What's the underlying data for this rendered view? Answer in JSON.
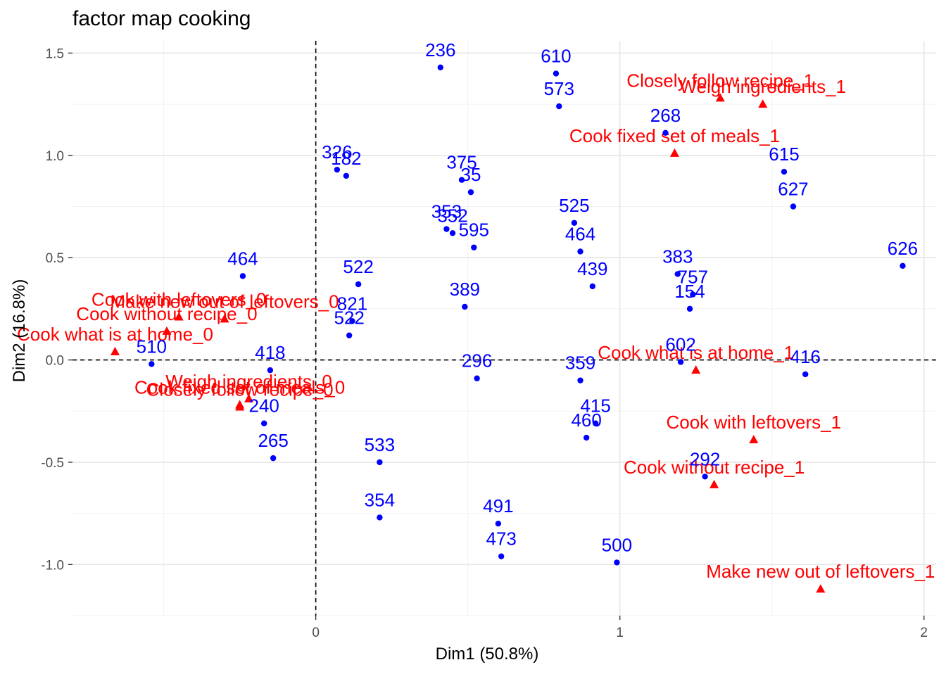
{
  "chart_data": {
    "type": "scatter",
    "title": "factor map cooking",
    "xlabel": "Dim1 (50.8%)",
    "ylabel": "Dim2 (16.8%)",
    "xlim": [
      -0.8,
      2.04
    ],
    "ylim": [
      -1.25,
      1.56
    ],
    "xticks": [
      0,
      1,
      2
    ],
    "yticks": [
      -1.0,
      -0.5,
      0.0,
      0.5,
      1.0,
      1.5
    ],
    "xtick_labels": [
      "0",
      "1",
      "2"
    ],
    "ytick_labels": [
      "-1.0",
      "-0.5",
      "0.0",
      "0.5",
      "1.0",
      "1.5"
    ],
    "grid": true,
    "reference_lines": {
      "x": 0,
      "y": 0
    },
    "colors": {
      "individuals": "#0000ff",
      "categories": "#ff0000",
      "grid_major": "#e6e6e6",
      "grid_minor": "#f2f2f2"
    },
    "individuals": [
      {
        "label": "236",
        "x": 0.41,
        "y": 1.43
      },
      {
        "label": "573",
        "x": 0.8,
        "y": 1.24
      },
      {
        "label": "610",
        "x": 0.79,
        "y": 1.4
      },
      {
        "label": "268",
        "x": 1.15,
        "y": 1.11
      },
      {
        "label": "182",
        "x": 0.1,
        "y": 0.9
      },
      {
        "label": "326",
        "x": 0.07,
        "y": 0.93
      },
      {
        "label": "35",
        "x": 0.51,
        "y": 0.82
      },
      {
        "label": "375",
        "x": 0.48,
        "y": 0.88
      },
      {
        "label": "352",
        "x": 0.45,
        "y": 0.62
      },
      {
        "label": "353",
        "x": 0.43,
        "y": 0.64
      },
      {
        "label": "595",
        "x": 0.52,
        "y": 0.55
      },
      {
        "label": "615",
        "x": 1.54,
        "y": 0.92
      },
      {
        "label": "627",
        "x": 1.57,
        "y": 0.75
      },
      {
        "label": "464",
        "x": 0.87,
        "y": 0.53
      },
      {
        "label": "525",
        "x": 0.85,
        "y": 0.67
      },
      {
        "label": "464",
        "x": -0.24,
        "y": 0.41
      },
      {
        "label": "522",
        "x": 0.14,
        "y": 0.37
      },
      {
        "label": "821",
        "x": 0.12,
        "y": 0.19
      },
      {
        "label": "522",
        "x": 0.11,
        "y": 0.12
      },
      {
        "label": "383",
        "x": 1.19,
        "y": 0.42
      },
      {
        "label": "757",
        "x": 1.24,
        "y": 0.32
      },
      {
        "label": "154",
        "x": 1.23,
        "y": 0.25
      },
      {
        "label": "439",
        "x": 0.91,
        "y": 0.36
      },
      {
        "label": "626",
        "x": 1.93,
        "y": 0.46
      },
      {
        "label": "389",
        "x": 0.49,
        "y": 0.26
      },
      {
        "label": "602",
        "x": 1.2,
        "y": -0.01
      },
      {
        "label": "296",
        "x": 0.53,
        "y": -0.09
      },
      {
        "label": "418",
        "x": -0.15,
        "y": -0.05
      },
      {
        "label": "415",
        "x": 0.92,
        "y": -0.31
      },
      {
        "label": "359",
        "x": 0.87,
        "y": -0.1
      },
      {
        "label": "460",
        "x": 0.89,
        "y": -0.38
      },
      {
        "label": "416",
        "x": 1.61,
        "y": -0.07
      },
      {
        "label": "265",
        "x": -0.14,
        "y": -0.48
      },
      {
        "label": "240",
        "x": -0.17,
        "y": -0.31
      },
      {
        "label": "533",
        "x": 0.21,
        "y": -0.5
      },
      {
        "label": "354",
        "x": 0.21,
        "y": -0.77
      },
      {
        "label": "473",
        "x": 0.61,
        "y": -0.96
      },
      {
        "label": "491",
        "x": 0.6,
        "y": -0.8
      },
      {
        "label": "292",
        "x": 1.28,
        "y": -0.57
      },
      {
        "label": "500",
        "x": 0.99,
        "y": -0.99
      },
      {
        "label": "510",
        "x": -0.54,
        "y": -0.02
      }
    ],
    "categories": [
      {
        "label": "Closely follow recipe_1",
        "x": 1.33,
        "y": 1.28
      },
      {
        "label": "Weigh ingredients_1",
        "x": 1.47,
        "y": 1.25
      },
      {
        "label": "Cook fixed set of meals_1",
        "x": 1.18,
        "y": 1.01
      },
      {
        "label": "Cook what is at home_1",
        "x": 1.25,
        "y": -0.05
      },
      {
        "label": "Cook with leftovers_1",
        "x": 1.44,
        "y": -0.39
      },
      {
        "label": "Cook without recipe_1",
        "x": 1.31,
        "y": -0.61
      },
      {
        "label": "Make new out of leftovers_1",
        "x": 1.66,
        "y": -1.12
      },
      {
        "label": "Cook without recipe_0",
        "x": -0.49,
        "y": 0.14
      },
      {
        "label": "Make new out of leftovers_0",
        "x": -0.3,
        "y": 0.2
      },
      {
        "label": "Cook with leftovers_0",
        "x": -0.45,
        "y": 0.21
      },
      {
        "label": "Cook what is at home_0",
        "x": -0.66,
        "y": 0.04
      },
      {
        "label": "Weigh ingredients_0",
        "x": -0.22,
        "y": -0.19
      },
      {
        "label": "Cook fixed set of meals_0",
        "x": -0.25,
        "y": -0.22
      },
      {
        "label": "Closely follow recipe_0",
        "x": -0.25,
        "y": -0.23
      }
    ]
  }
}
